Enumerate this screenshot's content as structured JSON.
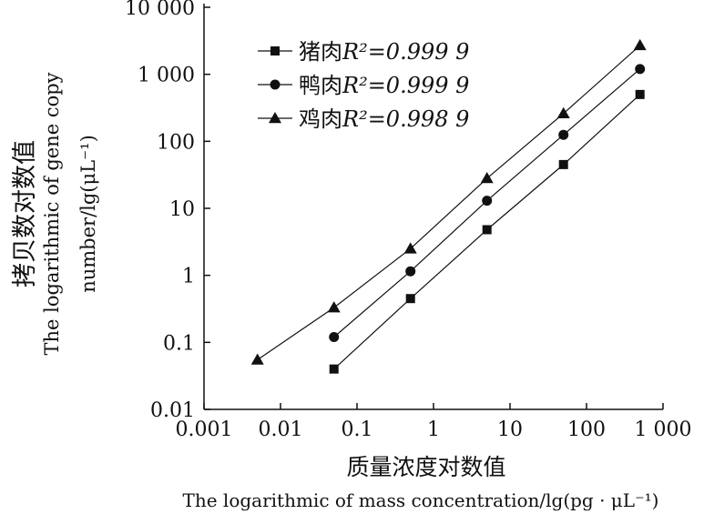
{
  "chart_data": {
    "type": "line",
    "title": "",
    "xscale": "log",
    "yscale": "log",
    "xlim": [
      0.001,
      1000
    ],
    "ylim": [
      0.01,
      10000
    ],
    "xticks": [
      {
        "value": 0.001,
        "label": "0.001"
      },
      {
        "value": 0.01,
        "label": "0.01"
      },
      {
        "value": 0.1,
        "label": "0.1"
      },
      {
        "value": 1,
        "label": "1"
      },
      {
        "value": 10,
        "label": "10"
      },
      {
        "value": 100,
        "label": "100"
      },
      {
        "value": 1000,
        "label": "1 000"
      }
    ],
    "yticks": [
      {
        "value": 0.01,
        "label": "0.01"
      },
      {
        "value": 0.1,
        "label": "0.1"
      },
      {
        "value": 1,
        "label": "1"
      },
      {
        "value": 10,
        "label": "10"
      },
      {
        "value": 100,
        "label": "100"
      },
      {
        "value": 1000,
        "label": "1 000"
      },
      {
        "value": 10000,
        "label": "10 000"
      }
    ],
    "xlabel_cn": "质量浓度对数值",
    "xlabel_en": "The logarithmic of mass concentration/lg(pg · μL⁻¹)",
    "ylabel_cn": "拷贝数对数值",
    "ylabel_en_1": "The logarithmic of gene copy",
    "ylabel_en_2": "number/lg(μL⁻¹)",
    "grid": false,
    "legend_position": "top-left",
    "series": [
      {
        "name": "猪肉",
        "r2_label": "R²=0.999 9",
        "marker": "square",
        "x": [
          0.05,
          0.5,
          5,
          50,
          500
        ],
        "y": [
          0.04,
          0.45,
          4.8,
          45,
          500
        ]
      },
      {
        "name": "鸭肉",
        "r2_label": "R²=0.999 9",
        "marker": "circle",
        "x": [
          0.05,
          0.5,
          5,
          50,
          500
        ],
        "y": [
          0.12,
          1.15,
          13,
          125,
          1200
        ]
      },
      {
        "name": "鸡肉",
        "r2_label": "R²=0.998 9",
        "marker": "triangle",
        "x": [
          0.005,
          0.05,
          0.5,
          5,
          50,
          500
        ],
        "y": [
          0.055,
          0.33,
          2.5,
          28,
          260,
          2700
        ]
      }
    ]
  }
}
